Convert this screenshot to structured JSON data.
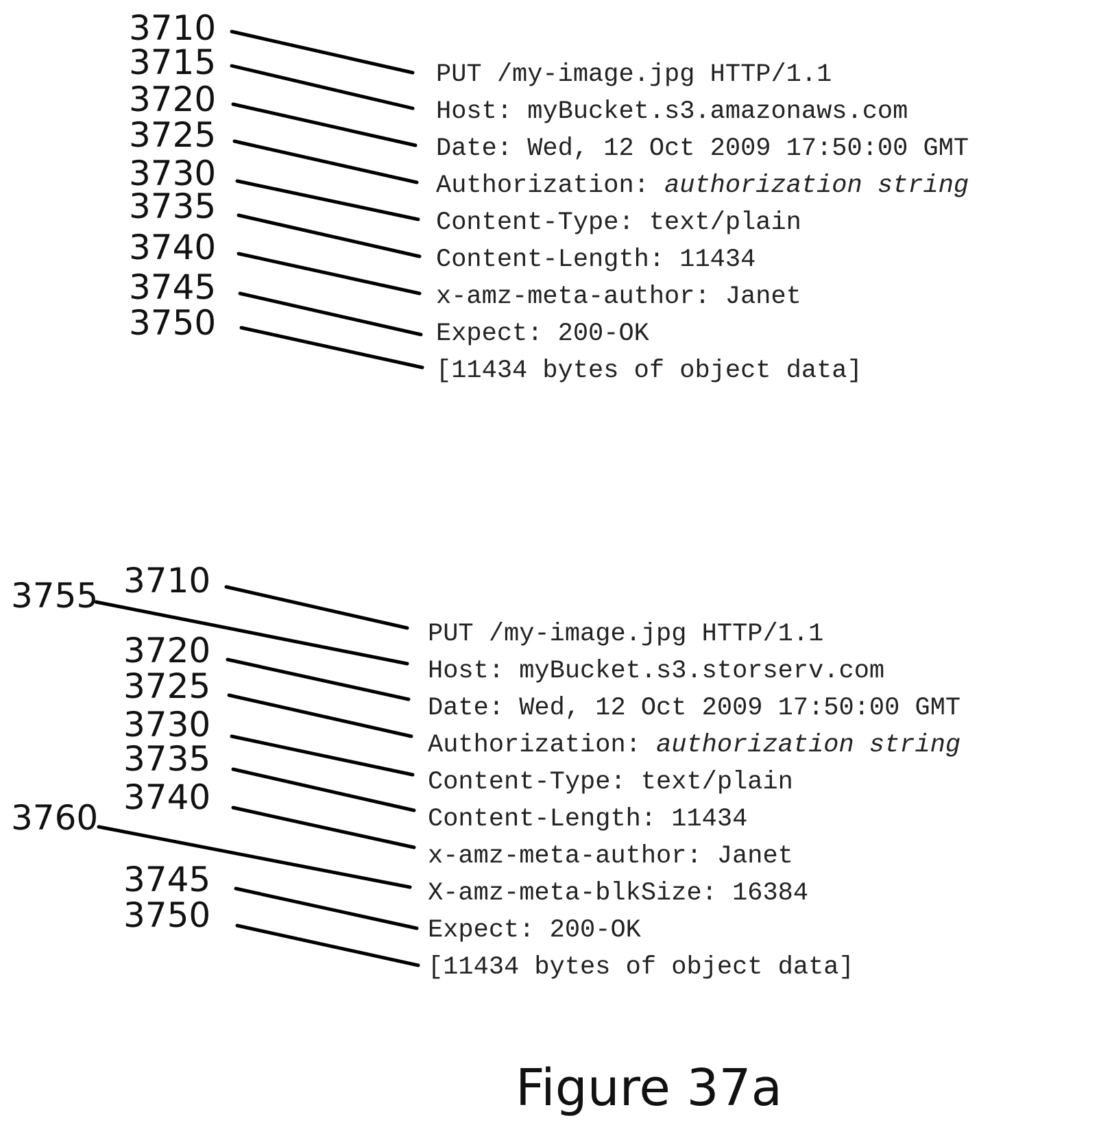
{
  "panels": [
    {
      "refs": [
        "3710",
        "3715",
        "3720",
        "3725",
        "3730",
        "3735",
        "3740",
        "3745",
        "3750"
      ],
      "lines": [
        {
          "text": "PUT /my-image.jpg HTTP/1.1"
        },
        {
          "text": "Host: myBucket.s3.amazonaws.com"
        },
        {
          "text": "Date: Wed, 12 Oct 2009 17:50:00 GMT"
        },
        {
          "text": "Authorization: ",
          "italic": "authorization string"
        },
        {
          "text": "Content-Type: text/plain"
        },
        {
          "text": "Content-Length: 11434"
        },
        {
          "text": "x-amz-meta-author: Janet"
        },
        {
          "text": "Expect: 200-OK"
        },
        {
          "text": "[11434 bytes of object data]"
        }
      ]
    },
    {
      "refs": [
        "3710",
        "3755",
        "3720",
        "3725",
        "3730",
        "3735",
        "3740",
        "3760",
        "3745",
        "3750"
      ],
      "lines": [
        {
          "text": "PUT /my-image.jpg HTTP/1.1"
        },
        {
          "text": "Host: myBucket.s3.storserv.com"
        },
        {
          "text": "Date: Wed, 12 Oct 2009 17:50:00 GMT"
        },
        {
          "text": "Authorization: ",
          "italic": "authorization string"
        },
        {
          "text": "Content-Type: text/plain"
        },
        {
          "text": "Content-Length: 11434"
        },
        {
          "text": "x-amz-meta-author: Janet"
        },
        {
          "text": "X-amz-meta-blkSize: 16384"
        },
        {
          "text": "Expect: 200-OK"
        },
        {
          "text": "[11434 bytes of object data]"
        }
      ]
    }
  ],
  "caption": "Figure 37a"
}
